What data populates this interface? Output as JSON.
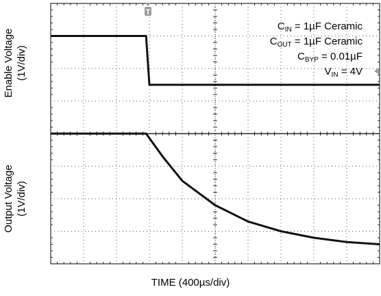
{
  "chart_data": {
    "type": "line",
    "xlabel": "TIME (400µs/div)",
    "grid": true,
    "x_divisions": 10,
    "y_divisions": 8,
    "series": [
      {
        "axis": "Enable Voltage (1V/div)",
        "points": [
          [
            0,
            3
          ],
          [
            2.9,
            3
          ],
          [
            3.0,
            1.5
          ],
          [
            10,
            1.5
          ]
        ]
      },
      {
        "axis": "Output Voltage (1V/div)",
        "points": [
          [
            0,
            4
          ],
          [
            2.9,
            4
          ],
          [
            3.4,
            3.3
          ],
          [
            4,
            2.55
          ],
          [
            5,
            1.8
          ],
          [
            6,
            1.3
          ],
          [
            7,
            1.0
          ],
          [
            8,
            0.8
          ],
          [
            9,
            0.67
          ],
          [
            10,
            0.6
          ]
        ]
      }
    ],
    "trigger_marker": "T",
    "channel_labels": [
      "Enable Voltage",
      "(1V/div)",
      "Output Voltage",
      "(1V/div)"
    ],
    "annotations": [
      {
        "base": "C",
        "sub": "IN",
        "rest": " = 1µF Ceramic"
      },
      {
        "base": "C",
        "sub": "OUT",
        "rest": " = 1µF Ceramic"
      },
      {
        "base": "C",
        "sub": "BYP",
        "rest": " = 0.01µF"
      },
      {
        "base": "V",
        "sub": "IN",
        "rest": " = 4V"
      }
    ]
  }
}
